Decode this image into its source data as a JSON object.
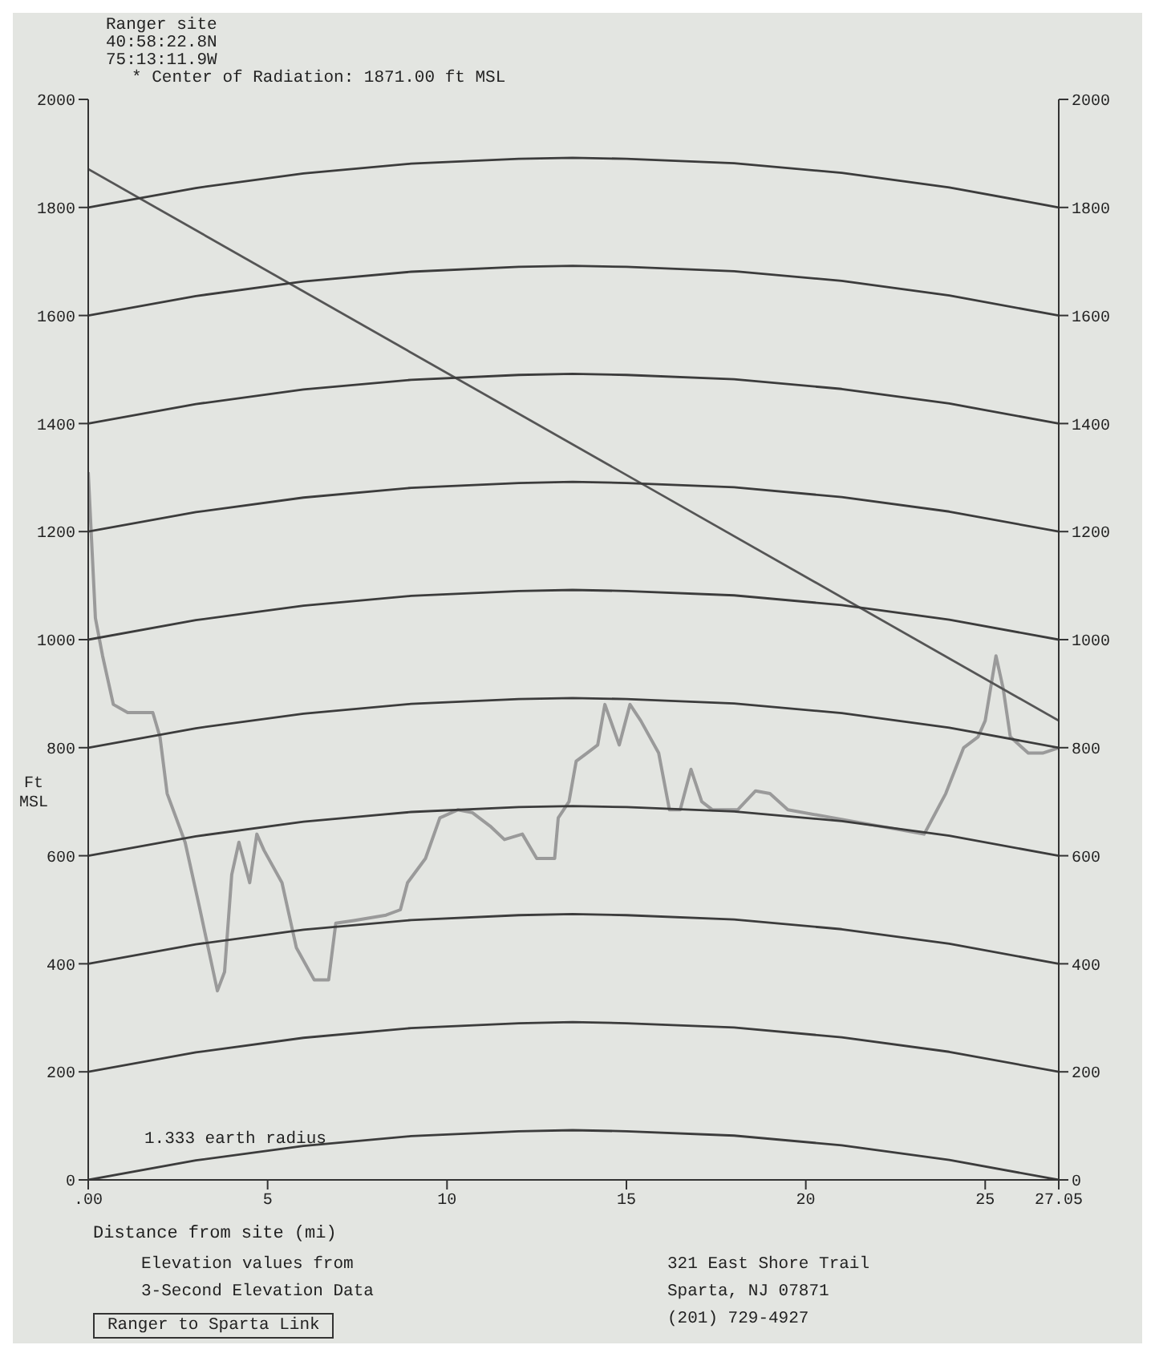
{
  "chart_data": {
    "type": "line",
    "xlabel": "Distance from site (mi)",
    "ylabel": "Ft MSL",
    "xlim": [
      0,
      27.05
    ],
    "xticks": [
      {
        "value": 0,
        "label": ".00"
      },
      5,
      10,
      15,
      20,
      25,
      27.05
    ],
    "ylim": [
      0,
      2000
    ],
    "yticks": [
      0,
      200,
      400,
      600,
      800,
      1000,
      1200,
      1400,
      1600,
      1800,
      2000
    ],
    "y2lim": [
      0,
      2000
    ],
    "y2ticks": [
      0,
      200,
      400,
      600,
      800,
      1000,
      1200,
      1400,
      1600,
      1800,
      2000
    ],
    "series": [
      {
        "color": "#9a9a9a",
        "x": [
          0,
          0.2,
          0.4,
          0.7,
          1.1,
          1.8,
          2.0,
          2.2,
          2.7,
          3.1,
          3.6,
          3.8,
          4.0,
          4.2,
          4.5,
          4.7,
          4.9,
          5.4,
          5.8,
          6.3,
          6.7,
          6.9,
          7.4,
          8.3,
          8.7,
          8.9,
          9.4,
          9.8,
          10.3,
          10.7,
          11.2,
          11.6,
          12.1,
          12.5,
          13.0,
          13.1,
          13.4,
          13.6,
          13.9,
          14.2,
          14.4,
          14.8,
          15.1,
          15.4,
          15.9,
          16.2,
          16.5,
          16.8,
          17.1,
          17.4,
          18.1,
          18.6,
          19.0,
          19.5,
          23.3,
          23.9,
          24.4,
          24.8,
          25.0,
          25.3,
          25.5,
          25.7,
          26.2,
          26.6,
          27.05
        ],
        "values": [
          1310,
          1040,
          970,
          880,
          865,
          865,
          820,
          715,
          625,
          505,
          350,
          385,
          565,
          625,
          550,
          640,
          610,
          550,
          430,
          370,
          370,
          475,
          480,
          490,
          500,
          550,
          595,
          670,
          685,
          680,
          655,
          630,
          640,
          595,
          595,
          670,
          700,
          775,
          790,
          805,
          880,
          805,
          880,
          850,
          790,
          685,
          685,
          760,
          700,
          685,
          685,
          720,
          715,
          685,
          640,
          715,
          800,
          820,
          850,
          970,
          910,
          820,
          790,
          790,
          800
        ]
      },
      {
        "color": "#555555",
        "x": [
          0,
          27.05
        ],
        "values": [
          1871,
          850
        ]
      },
      {
        "color": "#3c3c3c",
        "x": [
          0,
          3,
          6,
          9,
          12,
          13.5,
          15,
          18,
          21,
          24,
          27.05
        ],
        "values": [
          0,
          36,
          63,
          81,
          90,
          92,
          90,
          82,
          64,
          37,
          0
        ]
      },
      {
        "color": "#3c3c3c",
        "x": [
          0,
          3,
          6,
          9,
          12,
          13.5,
          15,
          18,
          21,
          24,
          27.05
        ],
        "values": [
          200,
          236,
          263,
          281,
          290,
          292,
          290,
          282,
          264,
          237,
          200
        ]
      },
      {
        "color": "#3c3c3c",
        "x": [
          0,
          3,
          6,
          9,
          12,
          13.5,
          15,
          18,
          21,
          24,
          27.05
        ],
        "values": [
          400,
          436,
          463,
          481,
          490,
          492,
          490,
          482,
          464,
          437,
          400
        ]
      },
      {
        "color": "#3c3c3c",
        "x": [
          0,
          3,
          6,
          9,
          12,
          13.5,
          15,
          18,
          21,
          24,
          27.05
        ],
        "values": [
          600,
          636,
          663,
          681,
          690,
          692,
          690,
          682,
          664,
          637,
          600
        ]
      },
      {
        "color": "#3c3c3c",
        "x": [
          0,
          3,
          6,
          9,
          12,
          13.5,
          15,
          18,
          21,
          24,
          27.05
        ],
        "values": [
          800,
          836,
          863,
          881,
          890,
          892,
          890,
          882,
          864,
          837,
          800
        ]
      },
      {
        "color": "#3c3c3c",
        "x": [
          0,
          3,
          6,
          9,
          12,
          13.5,
          15,
          18,
          21,
          24,
          27.05
        ],
        "values": [
          1000,
          1036,
          1063,
          1081,
          1090,
          1092,
          1090,
          1082,
          1064,
          1037,
          1000
        ]
      },
      {
        "color": "#3c3c3c",
        "x": [
          0,
          3,
          6,
          9,
          12,
          13.5,
          15,
          18,
          21,
          24,
          27.05
        ],
        "values": [
          1200,
          1236,
          1263,
          1281,
          1290,
          1292,
          1290,
          1282,
          1264,
          1237,
          1200
        ]
      },
      {
        "color": "#3c3c3c",
        "x": [
          0,
          3,
          6,
          9,
          12,
          13.5,
          15,
          18,
          21,
          24,
          27.05
        ],
        "values": [
          1400,
          1436,
          1463,
          1481,
          1490,
          1492,
          1490,
          1482,
          1464,
          1437,
          1400
        ]
      },
      {
        "color": "#3c3c3c",
        "x": [
          0,
          3,
          6,
          9,
          12,
          13.5,
          15,
          18,
          21,
          24,
          27.05
        ],
        "values": [
          1600,
          1636,
          1663,
          1681,
          1690,
          1692,
          1690,
          1682,
          1664,
          1637,
          1600
        ]
      },
      {
        "color": "#3c3c3c",
        "x": [
          0,
          3,
          6,
          9,
          12,
          13.5,
          15,
          18,
          21,
          24,
          27.05
        ],
        "values": [
          1800,
          1836,
          1863,
          1881,
          1890,
          1892,
          1890,
          1882,
          1864,
          1837,
          1800
        ]
      }
    ],
    "annotations": [
      "Ranger site",
      "40:58:22.8N",
      "75:13:11.9W",
      "* Center of Radiation: 1871.00 ft MSL",
      "1.333 earth radius",
      "Elevation values from",
      "3-Second Elevation Data",
      "Ranger to Sparta Link",
      "321 East Shore Trail",
      "Sparta, NJ 07871",
      "(201) 729-4927"
    ]
  }
}
